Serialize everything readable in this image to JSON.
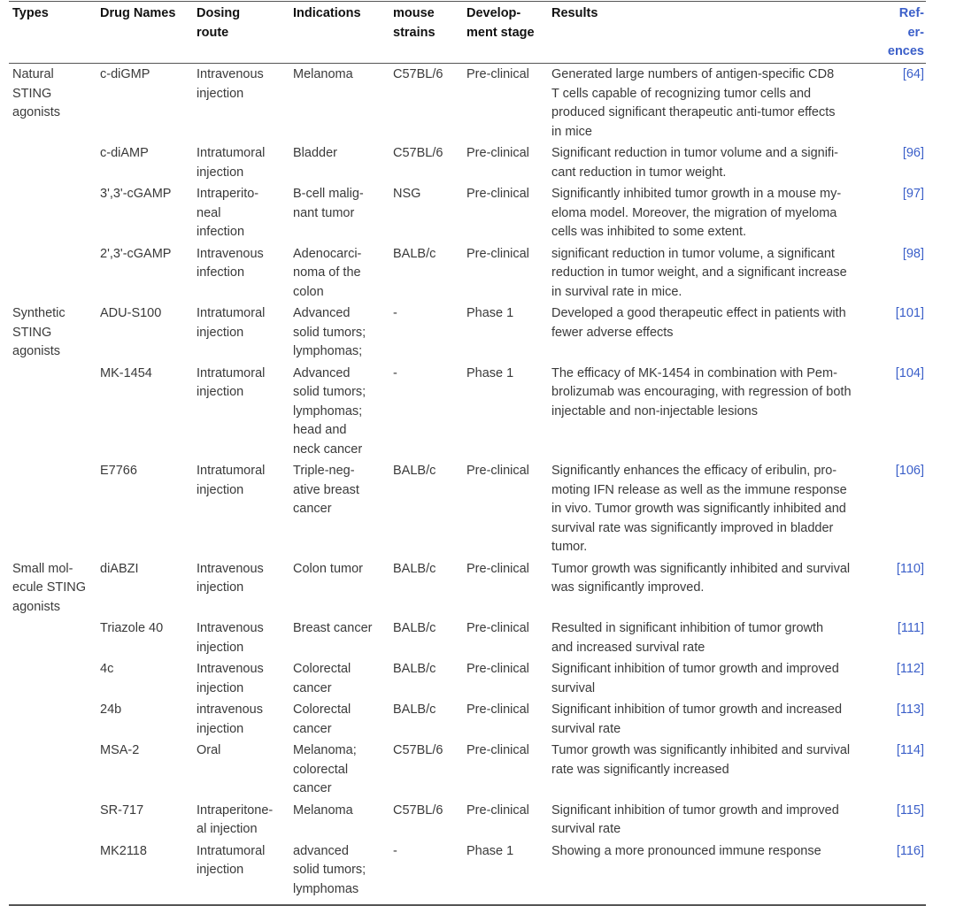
{
  "table": {
    "header": [
      [
        "Types"
      ],
      [
        "Drug Names"
      ],
      [
        "Dosing",
        "route"
      ],
      [
        "Indications"
      ],
      [
        "mouse",
        "strains"
      ],
      [
        "Develop-",
        "ment stage"
      ],
      [
        "Results"
      ],
      [
        "Ref-",
        "er-",
        "ences"
      ]
    ],
    "rows": [
      [
        [
          "Natural",
          "STING",
          "agonists"
        ],
        [
          "c-diGMP"
        ],
        [
          "Intravenous",
          "injection"
        ],
        [
          "Melanoma"
        ],
        [
          "C57BL/6"
        ],
        [
          "Pre-clinical"
        ],
        [
          "Generated large numbers of antigen-specific CD8",
          "T cells capable of recognizing tumor cells and",
          "produced significant therapeutic anti-tumor effects",
          "in mice"
        ],
        [
          "[64]"
        ]
      ],
      [
        [],
        [
          "c-diAMP"
        ],
        [
          "Intratumoral",
          "injection"
        ],
        [
          "Bladder"
        ],
        [
          "C57BL/6"
        ],
        [
          "Pre-clinical"
        ],
        [
          "Significant reduction in tumor volume and a signifi-",
          "cant reduction in tumor weight."
        ],
        [
          "[96]"
        ]
      ],
      [
        [],
        [
          "3',3'-cGAMP"
        ],
        [
          "Intraperito-",
          "neal",
          "infection"
        ],
        [
          "B-cell malig-",
          "nant tumor"
        ],
        [
          "NSG"
        ],
        [
          "Pre-clinical"
        ],
        [
          "Significantly inhibited tumor growth in a mouse my-",
          "eloma model. Moreover, the migration of myeloma",
          "cells was inhibited to some extent."
        ],
        [
          "[97]"
        ]
      ],
      [
        [],
        [
          "2',3'-cGAMP"
        ],
        [
          "Intravenous",
          "infection"
        ],
        [
          "Adenocarci-",
          "noma of the",
          "colon"
        ],
        [
          "BALB/c"
        ],
        [
          "Pre-clinical"
        ],
        [
          "significant reduction in tumor volume, a significant",
          "reduction in tumor weight, and a significant increase",
          "in survival rate in mice."
        ],
        [
          "[98]"
        ]
      ],
      [
        [
          "Synthetic",
          "STING",
          "agonists"
        ],
        [
          "ADU-S100"
        ],
        [
          "Intratumoral",
          "injection"
        ],
        [
          "Advanced",
          "solid tumors;",
          "lymphomas;"
        ],
        [
          "-"
        ],
        [
          "Phase 1"
        ],
        [
          "Developed a good therapeutic effect in patients with",
          "fewer adverse effects"
        ],
        [
          "[101]"
        ]
      ],
      [
        [],
        [
          "MK-1454"
        ],
        [
          "Intratumoral",
          "injection"
        ],
        [
          "Advanced",
          "solid tumors;",
          "lymphomas;",
          "head and",
          "neck cancer"
        ],
        [
          "-"
        ],
        [
          "Phase 1"
        ],
        [
          "The efficacy of MK-1454 in combination with Pem-",
          "brolizumab was encouraging, with regression of both",
          "injectable and non-injectable lesions"
        ],
        [
          "[104]"
        ]
      ],
      [
        [],
        [
          "E7766"
        ],
        [
          "Intratumoral",
          "injection"
        ],
        [
          "Triple-neg-",
          "ative breast",
          "cancer"
        ],
        [
          "BALB/c"
        ],
        [
          "Pre-clinical"
        ],
        [
          "Significantly enhances the efficacy of eribulin, pro-",
          "moting IFN release as well as the immune response",
          "in vivo. Tumor growth was significantly inhibited and",
          "survival rate was significantly improved in bladder",
          "tumor."
        ],
        [
          "[106]"
        ]
      ],
      [
        [
          "Small mol-",
          "ecule STING",
          "agonists"
        ],
        [
          "diABZI"
        ],
        [
          "Intravenous",
          "injection"
        ],
        [
          "Colon tumor"
        ],
        [
          "BALB/c"
        ],
        [
          "Pre-clinical"
        ],
        [
          "Tumor growth was significantly inhibited and survival",
          "was significantly improved."
        ],
        [
          "[110]"
        ]
      ],
      [
        [],
        [
          "Triazole 40"
        ],
        [
          "Intravenous",
          "injection"
        ],
        [
          "Breast cancer"
        ],
        [
          "BALB/c"
        ],
        [
          "Pre-clinical"
        ],
        [
          "Resulted in significant inhibition of tumor growth",
          "and increased survival rate"
        ],
        [
          "[111]"
        ]
      ],
      [
        [],
        [
          "4c"
        ],
        [
          "Intravenous",
          "injection"
        ],
        [
          "Colorectal",
          "cancer"
        ],
        [
          "BALB/c"
        ],
        [
          "Pre-clinical"
        ],
        [
          "Significant inhibition of tumor growth and improved",
          "survival"
        ],
        [
          "[112]"
        ]
      ],
      [
        [],
        [
          "24b"
        ],
        [
          "intravenous",
          "injection"
        ],
        [
          "Colorectal",
          "cancer"
        ],
        [
          "BALB/c"
        ],
        [
          "Pre-clinical"
        ],
        [
          "Significant inhibition of tumor growth and increased",
          "survival rate"
        ],
        [
          "[113]"
        ]
      ],
      [
        [],
        [
          "MSA-2"
        ],
        [
          "Oral"
        ],
        [
          "Melanoma;",
          "colorectal",
          "cancer"
        ],
        [
          "C57BL/6"
        ],
        [
          "Pre-clinical"
        ],
        [
          "Tumor growth was significantly inhibited and survival",
          "rate was significantly increased"
        ],
        [
          "[114]"
        ]
      ],
      [
        [],
        [
          "SR-717"
        ],
        [
          "Intraperitone-",
          "al injection"
        ],
        [
          "Melanoma"
        ],
        [
          "C57BL/6"
        ],
        [
          "Pre-clinical"
        ],
        [
          "Significant inhibition of tumor growth and improved",
          "survival rate"
        ],
        [
          "[115]"
        ]
      ],
      [
        [],
        [
          "MK2118"
        ],
        [
          "Intratumoral",
          "injection"
        ],
        [
          "advanced",
          "solid tumors;",
          "lymphomas"
        ],
        [
          "-"
        ],
        [
          "Phase 1"
        ],
        [
          "Showing a more pronounced immune response"
        ],
        [
          "[116]"
        ]
      ]
    ]
  }
}
